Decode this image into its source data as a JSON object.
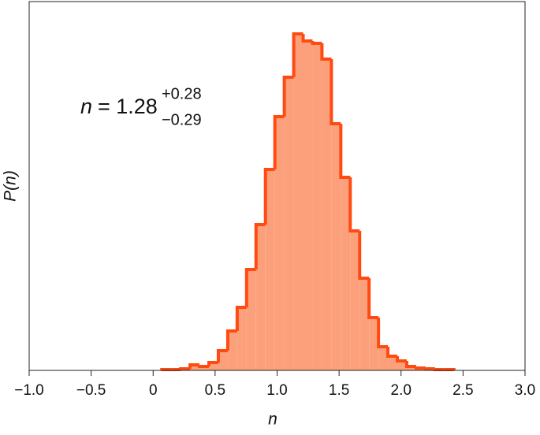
{
  "chart_data": {
    "type": "histogram",
    "x_label": "n",
    "y_label": "P(n)",
    "annotation": {
      "symbol": "n",
      "value": "= 1.28",
      "upper": "+0.28",
      "lower": "−0.29"
    },
    "bins": [
      0.07,
      0.146,
      0.222,
      0.298,
      0.374,
      0.45,
      0.526,
      0.602,
      0.678,
      0.754,
      0.83,
      0.906,
      0.982,
      1.058,
      1.134,
      1.21,
      1.286,
      1.362,
      1.438,
      1.514,
      1.59,
      1.666,
      1.742,
      1.818,
      1.894,
      1.97,
      2.046,
      2.122,
      2.198,
      2.274,
      2.35,
      2.426
    ],
    "values": [
      1,
      1,
      2,
      7,
      5,
      10,
      25,
      50,
      80,
      128,
      185,
      255,
      322,
      372,
      427,
      418,
      415,
      395,
      313,
      245,
      177,
      117,
      67,
      30,
      18,
      12,
      5,
      3,
      2,
      1,
      1
    ],
    "color": "#fca07c",
    "edge_color": "#ff4a12",
    "xlim": [
      -1,
      3
    ],
    "ylim": [
      0,
      468
    ],
    "xticks": [
      {
        "value": -1,
        "label": "−1.0"
      },
      {
        "value": -0.5,
        "label": "−0.5"
      },
      0,
      0.5,
      {
        "value": 1,
        "label": "1.0"
      },
      1.5,
      {
        "value": 2,
        "label": "2.0"
      },
      2.5,
      {
        "value": 3,
        "label": "3.0"
      }
    ]
  }
}
